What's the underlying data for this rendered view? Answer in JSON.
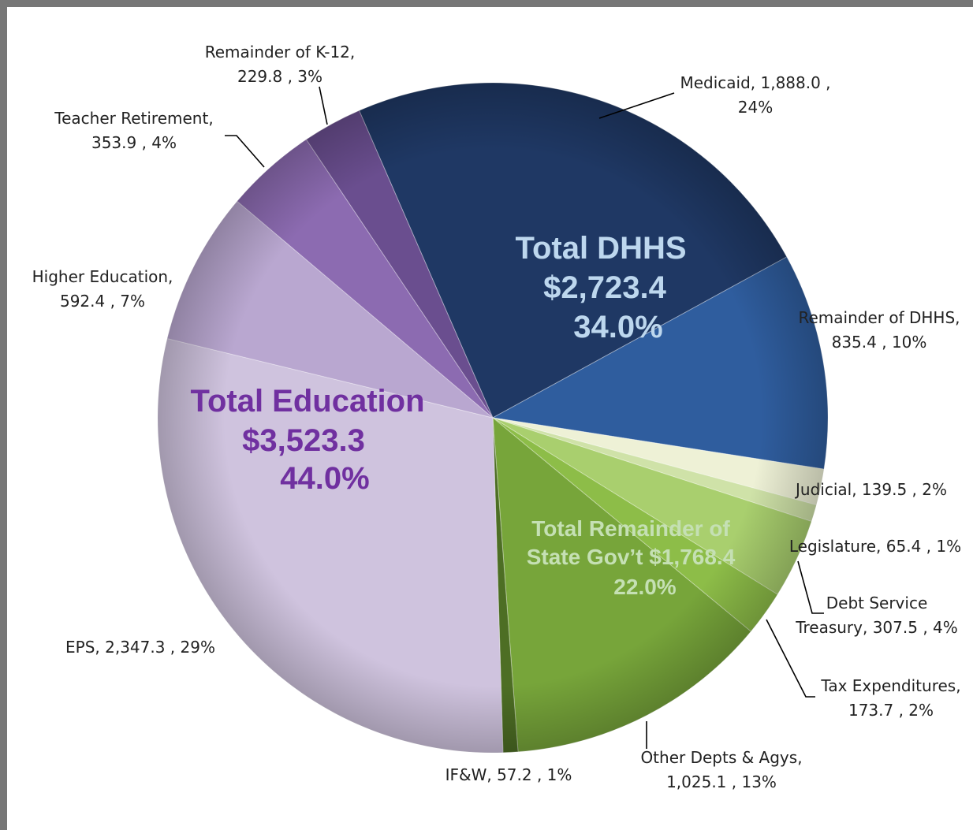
{
  "chart_data": {
    "type": "pie",
    "categories": [
      "Medicaid",
      "Remainder of DHHS",
      "Judicial",
      "Legislature",
      "Debt Service Treasury",
      "Tax Expenditures",
      "Other Depts & Agys",
      "IF&W",
      "EPS",
      "Higher Education",
      "Teacher Retirement",
      "Remainder of K-12"
    ],
    "values": [
      1888.0,
      835.4,
      139.5,
      65.4,
      307.5,
      173.7,
      1025.1,
      57.2,
      2347.3,
      592.4,
      353.9,
      229.8
    ],
    "percents": [
      24,
      10,
      2,
      1,
      4,
      2,
      13,
      1,
      29,
      7,
      4,
      3
    ],
    "labels": [
      [
        "Medicaid, 1,888.0 ,",
        "24%"
      ],
      [
        "Remainder of DHHS,",
        "835.4 , 10%"
      ],
      [
        "Judicial, 139.5 , 2%"
      ],
      [
        "Legislature, 65.4 , 1%"
      ],
      [
        "Debt Service",
        "Treasury, 307.5 , 4%"
      ],
      [
        "Tax Expenditures,",
        "173.7 , 2%"
      ],
      [
        "Other Depts & Agys,",
        "1,025.1 , 13%"
      ],
      [
        "IF&W, 57.2 , 1%"
      ],
      [
        "EPS, 2,347.3 , 29%"
      ],
      [
        "Higher Education,",
        "592.4 , 7%"
      ],
      [
        "Teacher Retirement,",
        "353.9 , 4%"
      ],
      [
        "Remainder of K-12,",
        "229.8 , 3%"
      ]
    ],
    "colors": [
      "#1f3864",
      "#2f5d9e",
      "#eef1d6",
      "#cfe2a8",
      "#a9cf6e",
      "#8dbd48",
      "#77a53a",
      "#4d6e24",
      "#cfc3de",
      "#b9a7d0",
      "#8c6bb1",
      "#6a4e8f"
    ],
    "annotations": [
      {
        "lines": [
          "Total DHHS",
          "$2,723.4",
          "34.0%"
        ],
        "color": "#bdd7ee"
      },
      {
        "lines": [
          "Total Education",
          "$3,523.3",
          "44.0%"
        ],
        "color": "#7030a0"
      },
      {
        "lines": [
          "Total Remainder of",
          "State Gov’t $1,768.4",
          "22.0%"
        ],
        "color": "#c5e0b4"
      }
    ]
  }
}
